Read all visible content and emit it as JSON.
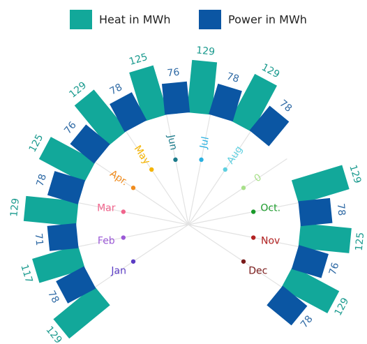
{
  "chart_data": {
    "type": "radial-bar",
    "categories": [
      "Jan",
      "Feb",
      "Mar",
      "Apr.",
      "May",
      "Jun",
      "Jul",
      "Aug",
      "0",
      "Oct.",
      "Nov",
      "Dec"
    ],
    "category_colors": [
      "#5b3cc4",
      "#9b59d6",
      "#f0648c",
      "#f08c1e",
      "#f5b400",
      "#1a7a8a",
      "#2ab0e0",
      "#5fd0e0",
      "#a8e08a",
      "#1a9a2a",
      "#b22222",
      "#7a1a1a"
    ],
    "series": [
      {
        "name": "Heat in MWh",
        "color": "#12a89a",
        "values": [
          129,
          117,
          129,
          125,
          129,
          125,
          129,
          129,
          0,
          129,
          125,
          129
        ]
      },
      {
        "name": "Power in MWh",
        "color": "#0b56a3",
        "values": [
          78,
          71,
          78,
          76,
          78,
          76,
          78,
          78,
          0,
          78,
          76,
          78
        ]
      }
    ],
    "ylim": [
      0,
      140
    ]
  }
}
